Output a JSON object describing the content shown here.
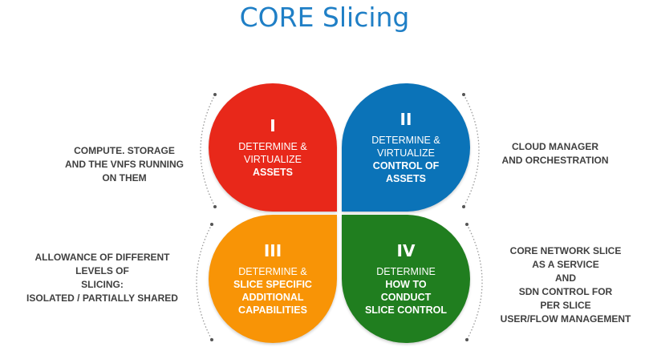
{
  "title": "CORE Slicing",
  "quadrants": [
    {
      "numeral": "I",
      "lines": [
        "DETERMINE &",
        "VIRTUALIZE"
      ],
      "bold_lines": [
        "ASSETS"
      ],
      "color": "#e8281a"
    },
    {
      "numeral": "II",
      "lines": [
        "DETERMINE &",
        "VIRTUALIZE"
      ],
      "bold_lines": [
        "CONTROL OF",
        "ASSETS"
      ],
      "color": "#0b73b8"
    },
    {
      "numeral": "III",
      "lines": [
        "DETERMINE &"
      ],
      "bold_lines": [
        "SLICE SPECIFIC",
        "ADDITIONAL",
        "CAPABILITIES"
      ],
      "color": "#f89406"
    },
    {
      "numeral": "IV",
      "lines": [
        "DETERMINE"
      ],
      "bold_lines": [
        "HOW TO",
        "CONDUCT",
        "SLICE CONTROL"
      ],
      "color": "#207e1f"
    }
  ],
  "side_labels": {
    "top_left": [
      "COMPUTE. STORAGE",
      "AND THE VNFS RUNNING",
      "ON THEM"
    ],
    "top_right": [
      "CLOUD MANAGER",
      "AND ORCHESTRATION"
    ],
    "bottom_left": [
      "ALLOWANCE OF DIFFERENT",
      "LEVELS OF",
      "SLICING:",
      "ISOLATED / PARTIALLY SHARED"
    ],
    "bottom_right": [
      "CORE NETWORK SLICE",
      "AS A SERVICE",
      "AND",
      "SDN CONTROL FOR",
      "PER SLICE",
      "USER/FLOW MANAGEMENT"
    ]
  },
  "colors": {
    "title": "#1f7fc6",
    "side_text": "#404040",
    "arc": "#888888"
  }
}
